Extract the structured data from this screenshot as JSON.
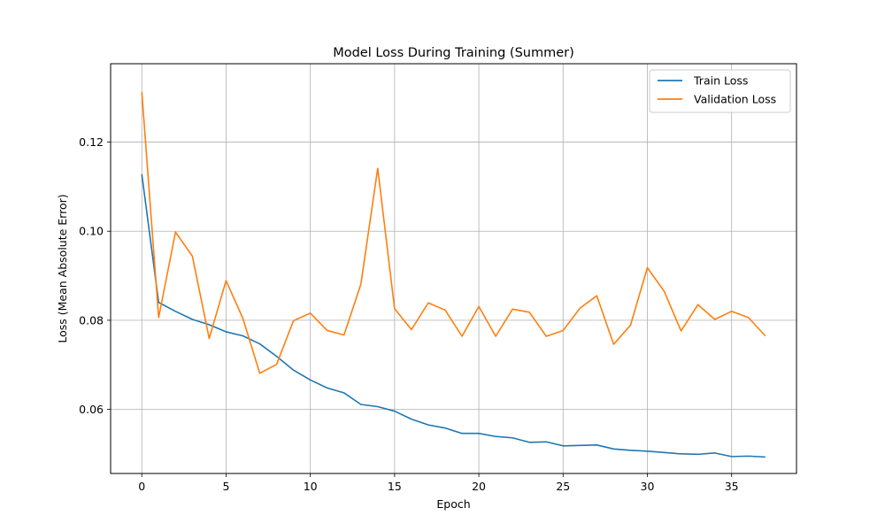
{
  "chart_data": {
    "type": "line",
    "title": "Model Loss During Training (Summer)",
    "xlabel": "Epoch",
    "ylabel": "Loss (Mean Absolute Error)",
    "xlim": [
      -1.85,
      38.85
    ],
    "ylim": [
      0.0456,
      0.1376
    ],
    "xticks": [
      0,
      5,
      10,
      15,
      20,
      25,
      30,
      35
    ],
    "yticks": [
      0.06,
      0.08,
      0.1,
      0.12
    ],
    "ytick_labels": [
      "0.06",
      "0.08",
      "0.10",
      "0.12"
    ],
    "grid": true,
    "legend_position": "top-right",
    "x": [
      0,
      1,
      2,
      3,
      4,
      5,
      6,
      7,
      8,
      9,
      10,
      11,
      12,
      13,
      14,
      15,
      16,
      17,
      18,
      19,
      20,
      21,
      22,
      23,
      24,
      25,
      26,
      27,
      28,
      29,
      30,
      31,
      32,
      33,
      34,
      35,
      36,
      37
    ],
    "series": [
      {
        "name": "Train Loss",
        "color": "#1f77b4",
        "values": [
          0.1128,
          0.084,
          0.082,
          0.0802,
          0.079,
          0.0774,
          0.0765,
          0.0747,
          0.0719,
          0.0688,
          0.0666,
          0.0648,
          0.0637,
          0.0611,
          0.0606,
          0.0596,
          0.0578,
          0.0565,
          0.0558,
          0.0546,
          0.0546,
          0.0539,
          0.0536,
          0.0526,
          0.0527,
          0.0518,
          0.0519,
          0.052,
          0.0511,
          0.0508,
          0.0506,
          0.0503,
          0.05,
          0.0499,
          0.0502,
          0.0494,
          0.0495,
          0.0493
        ]
      },
      {
        "name": "Validation Loss",
        "color": "#ff7f0e",
        "values": [
          0.1313,
          0.0806,
          0.0998,
          0.0944,
          0.0759,
          0.0889,
          0.0804,
          0.0681,
          0.0701,
          0.0799,
          0.0816,
          0.0777,
          0.0767,
          0.0881,
          0.1141,
          0.0826,
          0.0779,
          0.0839,
          0.0823,
          0.0764,
          0.0831,
          0.0764,
          0.0825,
          0.0818,
          0.0764,
          0.0777,
          0.0827,
          0.0855,
          0.0746,
          0.0789,
          0.0918,
          0.0865,
          0.0776,
          0.0835,
          0.0802,
          0.082,
          0.0806,
          0.0765
        ]
      }
    ]
  }
}
